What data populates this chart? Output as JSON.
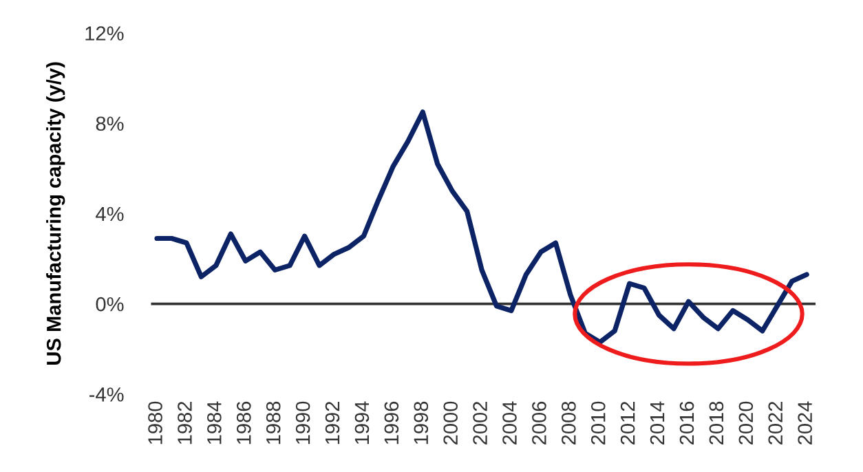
{
  "chart_data": {
    "type": "line",
    "ylabel": "US Manufacturing capacity (y/y)",
    "x": [
      1980,
      1981,
      1982,
      1983,
      1984,
      1985,
      1986,
      1987,
      1988,
      1989,
      1990,
      1991,
      1992,
      1993,
      1994,
      1995,
      1996,
      1997,
      1998,
      1999,
      2000,
      2001,
      2002,
      2003,
      2004,
      2005,
      2006,
      2007,
      2008,
      2009,
      2010,
      2011,
      2012,
      2013,
      2014,
      2015,
      2016,
      2017,
      2018,
      2019,
      2020,
      2021,
      2022,
      2023,
      2024
    ],
    "series": [
      {
        "color": "#0c2366",
        "values": [
          2.9,
          2.9,
          2.7,
          1.2,
          1.7,
          3.1,
          1.9,
          2.3,
          1.5,
          1.7,
          3.0,
          1.7,
          2.2,
          2.5,
          3.0,
          4.6,
          6.1,
          7.2,
          8.5,
          6.2,
          5.0,
          4.1,
          1.5,
          -0.1,
          -0.3,
          1.3,
          2.3,
          2.7,
          0.4,
          -1.3,
          -1.7,
          -1.2,
          0.9,
          0.7,
          -0.5,
          -1.1,
          0.1,
          -0.6,
          -1.1,
          -0.3,
          -0.7,
          -1.2,
          -0.1,
          1.0,
          1.3
        ]
      }
    ],
    "xlim": [
      1979.6,
      2024.6
    ],
    "xticks": [
      1980,
      1982,
      1984,
      1986,
      1988,
      1990,
      1992,
      1994,
      1996,
      1998,
      2000,
      2002,
      2004,
      2006,
      2008,
      2010,
      2012,
      2014,
      2016,
      2018,
      2020,
      2022,
      2024
    ],
    "ylim": [
      -4,
      12
    ],
    "yticks": [
      {
        "value": -4,
        "label": "-4%"
      },
      {
        "value": 0,
        "label": "0%"
      },
      {
        "value": 4,
        "label": "4%"
      },
      {
        "value": 8,
        "label": "8%"
      },
      {
        "value": 12,
        "label": "12%"
      }
    ],
    "ref_lines": [
      {
        "axis": "y",
        "value": 0,
        "color": "#333333"
      }
    ],
    "grid": false,
    "legend": false,
    "marker": "none",
    "line_style": "solid"
  }
}
